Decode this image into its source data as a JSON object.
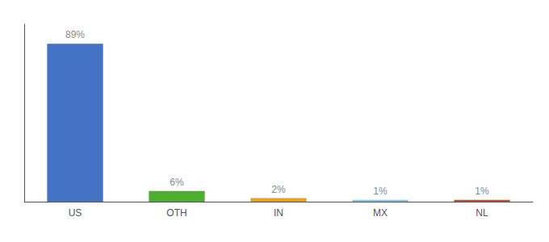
{
  "chart_data": {
    "type": "bar",
    "categories": [
      "US",
      "OTH",
      "IN",
      "MX",
      "NL"
    ],
    "values": [
      89,
      6,
      2,
      1,
      1
    ],
    "value_labels": [
      "89%",
      "6%",
      "2%",
      "1%",
      "1%"
    ],
    "colors": [
      "#4472c4",
      "#4daf2e",
      "#e8a020",
      "#7ec8e3",
      "#c0522a"
    ],
    "ylim": [
      0,
      100
    ],
    "data_labels": true,
    "tick_labels": "x",
    "grid": false
  }
}
